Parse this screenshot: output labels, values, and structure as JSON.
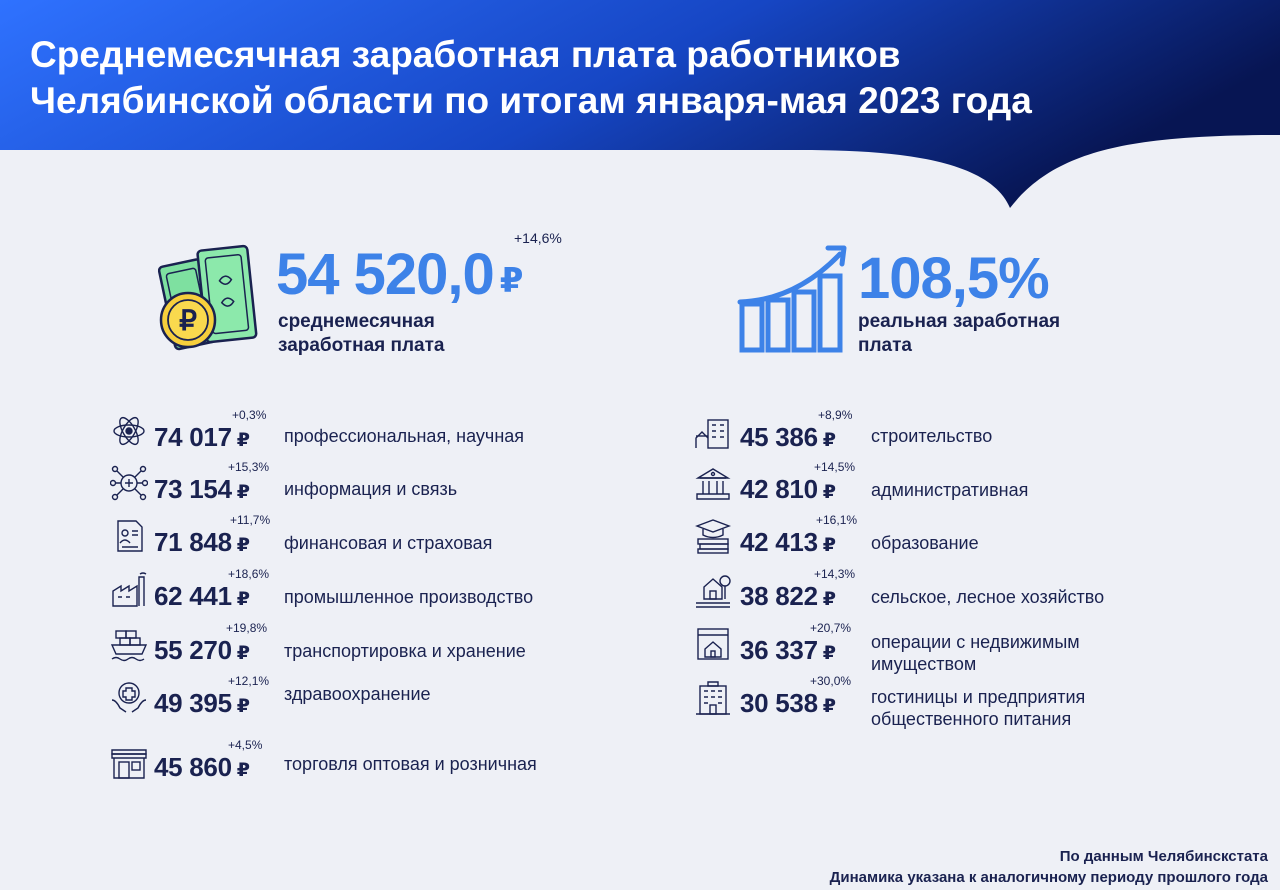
{
  "header": {
    "title_line1": "Среднемесячная заработная плата работников",
    "title_line2": "Челябинской области по итогам января-мая 2023 года"
  },
  "summary": {
    "salary": {
      "value": "54 520,0",
      "currency": "₽",
      "change": "+14,6%",
      "label_line1": "среднемесячная",
      "label_line2": "заработная плата",
      "icon": "money-coin-icon"
    },
    "real_salary": {
      "value": "108,5%",
      "label_line1": "реальная заработная",
      "label_line2": "плата",
      "icon": "growth-chart-icon"
    }
  },
  "sectors_left": [
    {
      "value": "74 017",
      "currency": "₽",
      "change": "+0,3%",
      "label": "профессиональная, научная",
      "icon": "science-icon"
    },
    {
      "value": "73 154",
      "currency": "₽",
      "change": "+15,3%",
      "label": "информация и связь",
      "icon": "network-icon"
    },
    {
      "value": "71 848",
      "currency": "₽",
      "change": "+11,7%",
      "label": "финансовая и страховая",
      "icon": "insurance-document-icon"
    },
    {
      "value": "62 441",
      "currency": "₽",
      "change": "+18,6%",
      "label": "промышленное производство",
      "icon": "factory-icon"
    },
    {
      "value": "55 270",
      "currency": "₽",
      "change": "+19,8%",
      "label": "транспортировка и хранение",
      "icon": "cargo-ship-icon"
    },
    {
      "value": "49 395",
      "currency": "₽",
      "change": "+12,1%",
      "label": "здравоохранение",
      "icon": "health-care-icon"
    },
    {
      "value": "45 860",
      "currency": "₽",
      "change": "+4,5%",
      "label": "торговля оптовая и розничная",
      "icon": "shop-icon"
    }
  ],
  "sectors_right": [
    {
      "value": "45 386",
      "currency": "₽",
      "change": "+8,9%",
      "label_line1": "строительство",
      "label_line2": "",
      "icon": "construction-icon"
    },
    {
      "value": "42 810",
      "currency": "₽",
      "change": "+14,5%",
      "label_line1": "административная",
      "label_line2": "",
      "icon": "government-building-icon"
    },
    {
      "value": "42 413",
      "currency": "₽",
      "change": "+16,1%",
      "label_line1": "образование",
      "label_line2": "",
      "icon": "education-icon"
    },
    {
      "value": "38 822",
      "currency": "₽",
      "change": "+14,3%",
      "label_line1": "сельское, лесное хозяйство",
      "label_line2": "",
      "icon": "farm-icon"
    },
    {
      "value": "36 337",
      "currency": "₽",
      "change": "+20,7%",
      "label_line1": "операции с недвижимым",
      "label_line2": "имуществом",
      "icon": "real-estate-icon"
    },
    {
      "value": "30 538",
      "currency": "₽",
      "change": "+30,0%",
      "label_line1": "гостиницы и предприятия",
      "label_line2": "общественного питания",
      "icon": "hotel-icon"
    }
  ],
  "footer": {
    "source": "По данным Челябинскстата",
    "note": "Динамика указана к аналогичному периоду прошлого года"
  },
  "colors": {
    "header_gradient_start": "#2f6df6",
    "header_gradient_end": "#0a1a5e",
    "accent": "#3d82e8",
    "text_dark": "#1a2250",
    "background": "#eef0f6"
  }
}
